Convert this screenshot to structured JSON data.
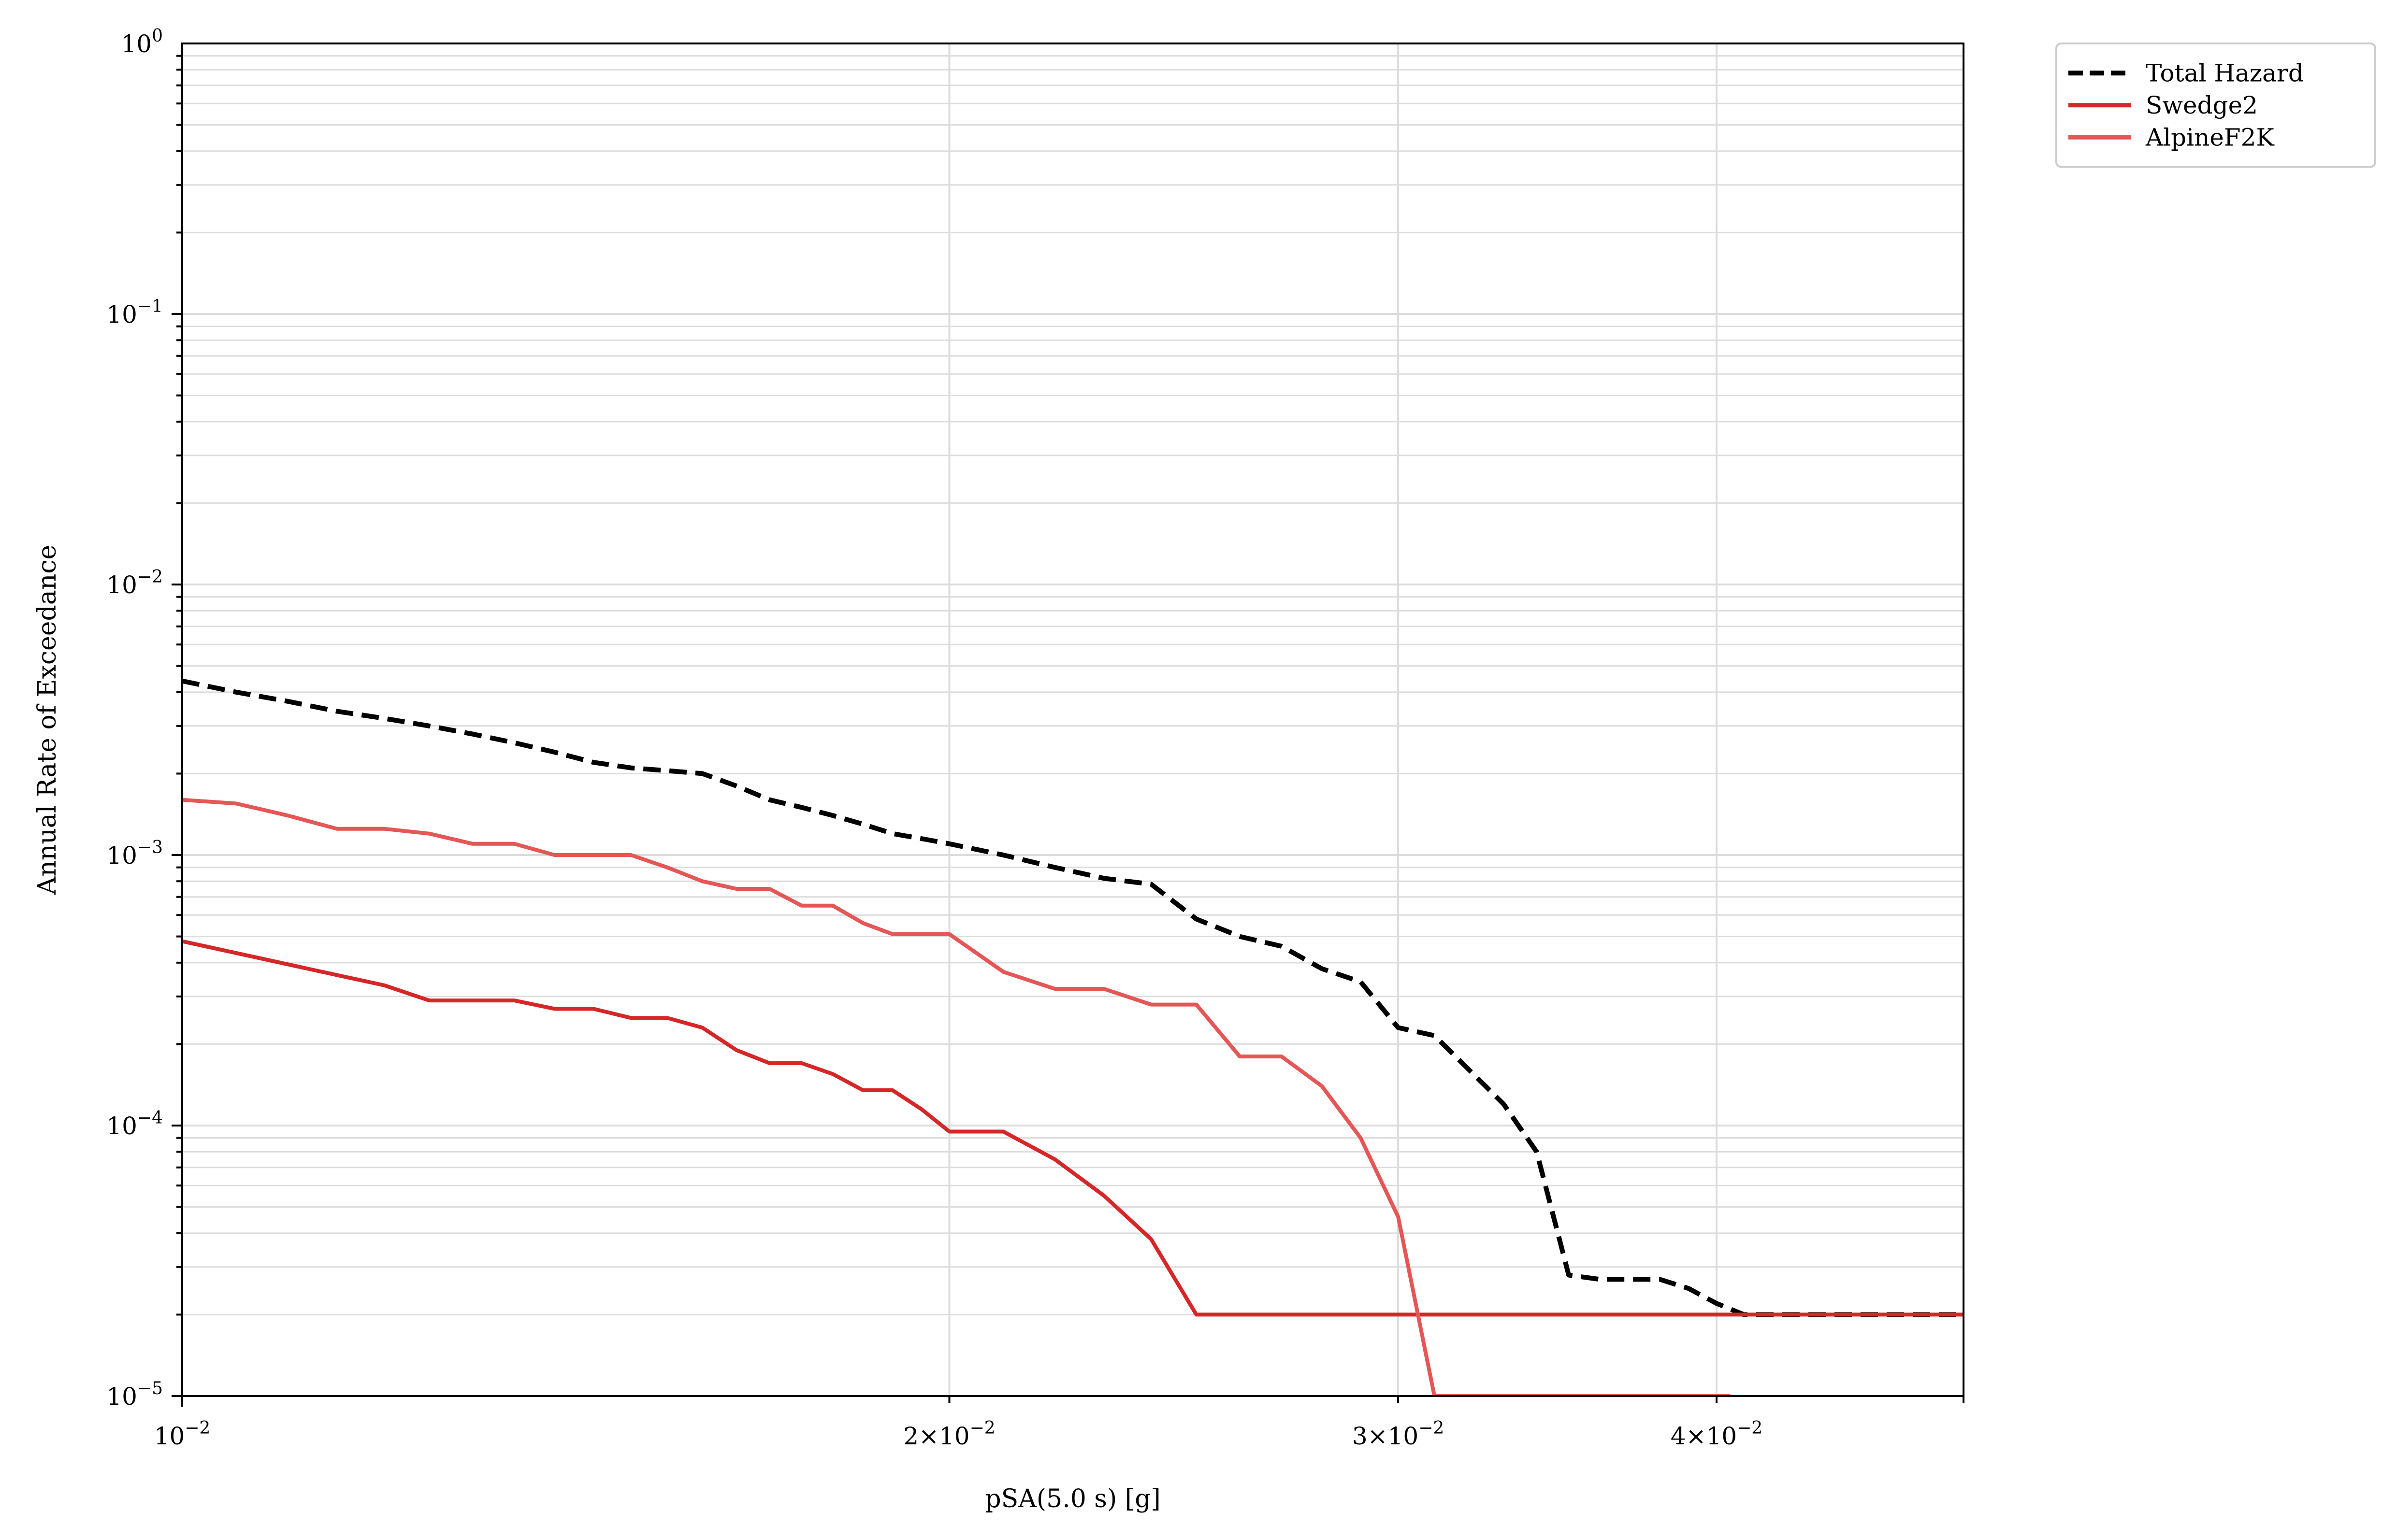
{
  "chart_data": {
    "type": "line",
    "xlabel": "pSA(5.0 s) [g]",
    "ylabel": "Annual Rate of Exceedance",
    "x_scale": "log",
    "y_scale": "log",
    "xlim": [
      0.01,
      0.05
    ],
    "ylim": [
      1e-05,
      1
    ],
    "x_ticks": [
      {
        "value": 0.01,
        "label": "10",
        "exp": "−2"
      },
      {
        "value": 0.02,
        "label": "2×10",
        "exp": "−2"
      },
      {
        "value": 0.03,
        "label": "3×10",
        "exp": "−2"
      },
      {
        "value": 0.04,
        "label": "4×10",
        "exp": "−2"
      }
    ],
    "y_ticks": [
      {
        "value": 1e-05,
        "label": "10",
        "exp": "−5"
      },
      {
        "value": 0.0001,
        "label": "10",
        "exp": "−4"
      },
      {
        "value": 0.001,
        "label": "10",
        "exp": "−3"
      },
      {
        "value": 0.01,
        "label": "10",
        "exp": "−2"
      },
      {
        "value": 0.1,
        "label": "10",
        "exp": "−1"
      },
      {
        "value": 1,
        "label": "10",
        "exp": "0"
      }
    ],
    "grid": true,
    "legend_position": "outside-right",
    "series": [
      {
        "name": "Total Hazard",
        "color": "#000000",
        "dashed": true,
        "x": [
          0.01,
          0.0105,
          0.011,
          0.0115,
          0.012,
          0.0125,
          0.013,
          0.0135,
          0.014,
          0.0145,
          0.015,
          0.0155,
          0.016,
          0.0165,
          0.017,
          0.0175,
          0.018,
          0.0185,
          0.019,
          0.0195,
          0.02,
          0.021,
          0.022,
          0.023,
          0.024,
          0.025,
          0.026,
          0.027,
          0.028,
          0.029,
          0.03,
          0.031,
          0.032,
          0.033,
          0.034,
          0.035,
          0.036,
          0.037,
          0.038,
          0.039,
          0.04,
          0.041,
          0.042,
          0.043,
          0.044,
          0.045,
          0.046,
          0.047,
          0.048,
          0.049,
          0.05
        ],
        "y": [
          0.0044,
          0.004,
          0.0037,
          0.0034,
          0.0032,
          0.003,
          0.0028,
          0.0026,
          0.0024,
          0.0022,
          0.0021,
          0.00205,
          0.002,
          0.0018,
          0.0016,
          0.0015,
          0.0014,
          0.0013,
          0.0012,
          0.00115,
          0.0011,
          0.001,
          0.0009,
          0.00082,
          0.00078,
          0.00058,
          0.0005,
          0.00046,
          0.00038,
          0.00034,
          0.00023,
          0.000215,
          0.00016,
          0.00012,
          8e-05,
          2.8e-05,
          2.7e-05,
          2.7e-05,
          2.7e-05,
          2.5e-05,
          2.2e-05,
          2e-05,
          2e-05,
          2e-05,
          2e-05,
          2e-05,
          2e-05,
          2e-05,
          2e-05,
          2e-05,
          2e-05
        ]
      },
      {
        "name": "Swedge2",
        "color": "#d62728",
        "x": [
          0.01,
          0.0115,
          0.012,
          0.0125,
          0.013,
          0.0135,
          0.014,
          0.0145,
          0.015,
          0.0155,
          0.016,
          0.0165,
          0.017,
          0.0175,
          0.018,
          0.0185,
          0.019,
          0.0195,
          0.02,
          0.021,
          0.022,
          0.023,
          0.024,
          0.025,
          0.026,
          0.027,
          0.028,
          0.029,
          0.0295,
          0.03,
          0.035,
          0.04,
          0.045,
          0.05
        ],
        "y": [
          0.00048,
          0.00036,
          0.00033,
          0.00029,
          0.00029,
          0.00029,
          0.00027,
          0.00027,
          0.00025,
          0.00025,
          0.00023,
          0.00019,
          0.00017,
          0.00017,
          0.000155,
          0.000135,
          0.000135,
          0.000115,
          9.5e-05,
          9.5e-05,
          7.5e-05,
          5.5e-05,
          3.8e-05,
          2e-05,
          2e-05,
          2e-05,
          2e-05,
          2e-05,
          2e-05,
          2e-05,
          2e-05,
          2e-05,
          2e-05,
          2e-05
        ]
      },
      {
        "name": "AlpineF2K",
        "color": "#e45756",
        "x": [
          0.01,
          0.0105,
          0.011,
          0.0115,
          0.012,
          0.0125,
          0.013,
          0.0135,
          0.014,
          0.0145,
          0.015,
          0.0155,
          0.016,
          0.0165,
          0.017,
          0.0175,
          0.018,
          0.0185,
          0.019,
          0.0195,
          0.02,
          0.021,
          0.022,
          0.023,
          0.024,
          0.025,
          0.026,
          0.027,
          0.028,
          0.029,
          0.03,
          0.031,
          0.032,
          0.033,
          0.034,
          0.035,
          0.036,
          0.037,
          0.038,
          0.039,
          0.04,
          0.0405
        ],
        "y": [
          0.0016,
          0.00155,
          0.0014,
          0.00125,
          0.00125,
          0.0012,
          0.0011,
          0.0011,
          0.001,
          0.001,
          0.001,
          0.0009,
          0.0008,
          0.00075,
          0.00075,
          0.00065,
          0.00065,
          0.00056,
          0.00051,
          0.00051,
          0.00051,
          0.00037,
          0.00032,
          0.00032,
          0.00028,
          0.00028,
          0.00018,
          0.00018,
          0.00014,
          9e-05,
          4.6e-05,
          1e-05,
          1e-05,
          1e-05,
          1e-05,
          1e-05,
          1e-05,
          1e-05,
          1e-05,
          1e-05,
          1e-05,
          1e-05
        ]
      }
    ]
  }
}
